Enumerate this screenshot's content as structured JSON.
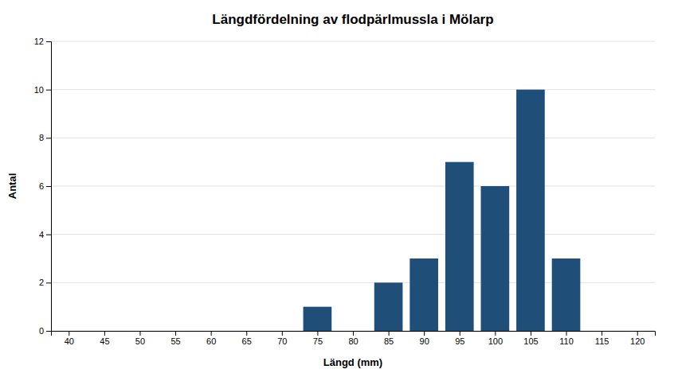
{
  "chart_data": {
    "type": "bar",
    "title": "Längdfördelning av flodpärlmussla i Mölarp",
    "xlabel": "Längd (mm)",
    "ylabel": "Antal",
    "x": [
      75,
      85,
      90,
      95,
      100,
      105,
      110
    ],
    "values": [
      1,
      2,
      3,
      7,
      6,
      10,
      3
    ],
    "color": "#1F4E79",
    "xlim": [
      37.5,
      122.5
    ],
    "xticks": [
      40,
      45,
      50,
      55,
      60,
      65,
      70,
      75,
      80,
      85,
      90,
      95,
      100,
      105,
      110,
      115,
      120
    ],
    "ylim": [
      0,
      12
    ],
    "yticks": [
      0,
      2,
      4,
      6,
      8,
      10,
      12
    ],
    "grid": true
  }
}
